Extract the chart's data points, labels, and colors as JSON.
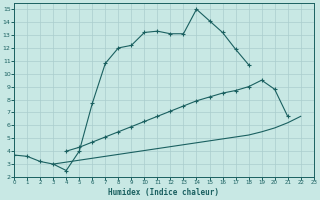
{
  "xlabel": "Humidex (Indice chaleur)",
  "bg_color": "#c8e8e4",
  "grid_color": "#aacece",
  "line_color": "#1a6060",
  "xlim": [
    0,
    23
  ],
  "ylim": [
    2,
    15.5
  ],
  "xticks": [
    0,
    1,
    2,
    3,
    4,
    5,
    6,
    7,
    8,
    9,
    10,
    11,
    12,
    13,
    14,
    15,
    16,
    17,
    18,
    19,
    20,
    21,
    22,
    23
  ],
  "yticks": [
    2,
    3,
    4,
    5,
    6,
    7,
    8,
    9,
    10,
    11,
    12,
    13,
    14,
    15
  ],
  "curve1_x": [
    0,
    1,
    2,
    3,
    4,
    5,
    6,
    7,
    8,
    9,
    10,
    11,
    12,
    13,
    14,
    15,
    16,
    17,
    18
  ],
  "curve1_y": [
    3.7,
    3.6,
    3.2,
    3.0,
    2.5,
    4.0,
    7.7,
    10.8,
    12.0,
    12.2,
    13.2,
    13.3,
    13.1,
    13.1,
    15.0,
    14.1,
    13.2,
    11.9,
    10.7
  ],
  "curve2_x": [
    4,
    5,
    6,
    7,
    8,
    9,
    10,
    11,
    12,
    13,
    14,
    15,
    16,
    17,
    18,
    19,
    20,
    21
  ],
  "curve2_y": [
    4.0,
    4.3,
    4.7,
    5.1,
    5.5,
    5.9,
    6.3,
    6.7,
    7.1,
    7.5,
    7.9,
    8.2,
    8.5,
    8.7,
    9.0,
    9.5,
    8.8,
    6.7
  ],
  "curve3_x": [
    3,
    4,
    5,
    6,
    7,
    8,
    9,
    10,
    11,
    12,
    13,
    14,
    15,
    16,
    17,
    18,
    19,
    20,
    21,
    22
  ],
  "curve3_y": [
    3.0,
    3.15,
    3.3,
    3.45,
    3.6,
    3.75,
    3.9,
    4.05,
    4.2,
    4.35,
    4.5,
    4.65,
    4.8,
    4.95,
    5.1,
    5.25,
    5.5,
    5.8,
    6.2,
    6.7
  ]
}
